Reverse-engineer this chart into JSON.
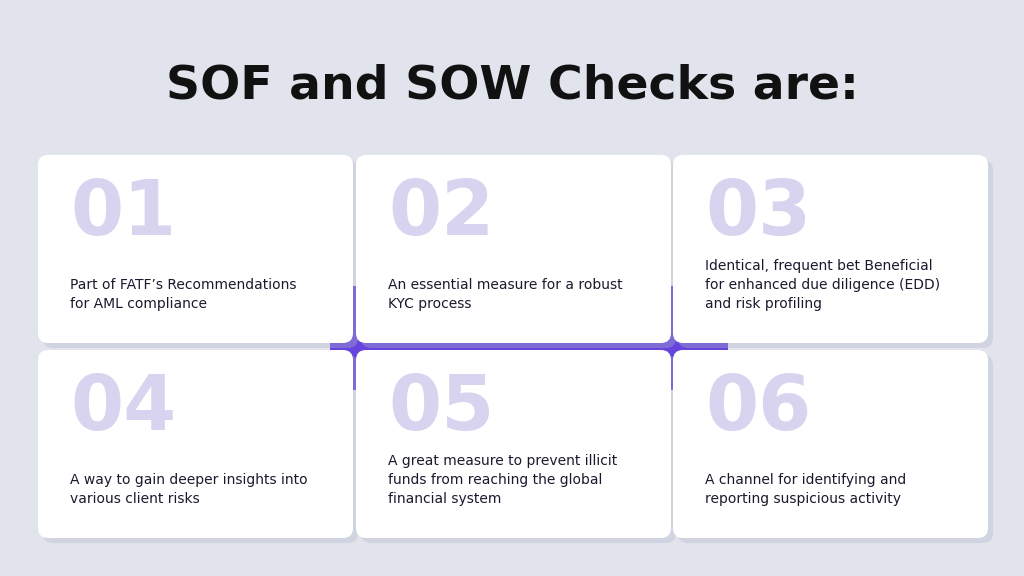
{
  "title": "SOF and SOW Checks are:",
  "background_color": "#e2e4ed",
  "card_bg": "#ffffff",
  "card_number_color": "#d8d4f0",
  "card_text_color": "#1a1a2e",
  "purple_accent": "#6644dd",
  "title_color": "#111111",
  "cards": [
    {
      "number": "01",
      "text": "Part of FATF’s Recommendations\nfor AML compliance",
      "row": 0,
      "col": 0
    },
    {
      "number": "02",
      "text": "An essential measure for a robust\nKYC process",
      "row": 0,
      "col": 1
    },
    {
      "number": "03",
      "text": "Identical, frequent bet Beneficial\nfor enhanced due diligence (EDD)\nand risk profiling",
      "row": 0,
      "col": 2
    },
    {
      "number": "04",
      "text": "A way to gain deeper insights into\nvarious client risks",
      "row": 1,
      "col": 0
    },
    {
      "number": "05",
      "text": "A great measure to prevent illicit\nfunds from reaching the global\nfinancial system",
      "row": 1,
      "col": 1
    },
    {
      "number": "06",
      "text": "A channel for identifying and\nreporting suspicious activity",
      "row": 1,
      "col": 2
    }
  ]
}
